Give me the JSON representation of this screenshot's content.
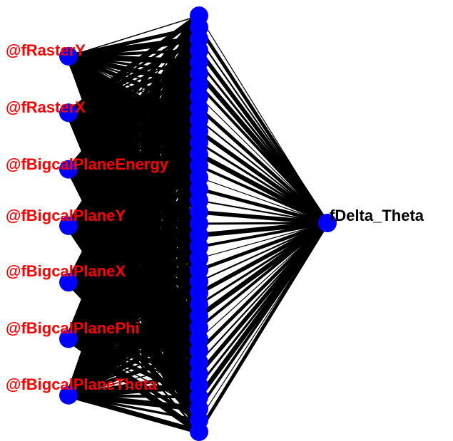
{
  "network": {
    "input_labels": [
      "@fRasterY",
      "@fRasterX",
      "@fBigcalPlaneEnergy",
      "@fBigcalPlaneY",
      "@fBigcalPlaneX",
      "@fBigcalPlanePhi",
      "@fBigcalPlaneTheta"
    ],
    "hidden_node_count": 37,
    "output_label": "fDelta_Theta"
  },
  "colors": {
    "node": "#0000ff",
    "edge": "#000000",
    "input_label": "#ff0000",
    "output_label": "#000000"
  }
}
